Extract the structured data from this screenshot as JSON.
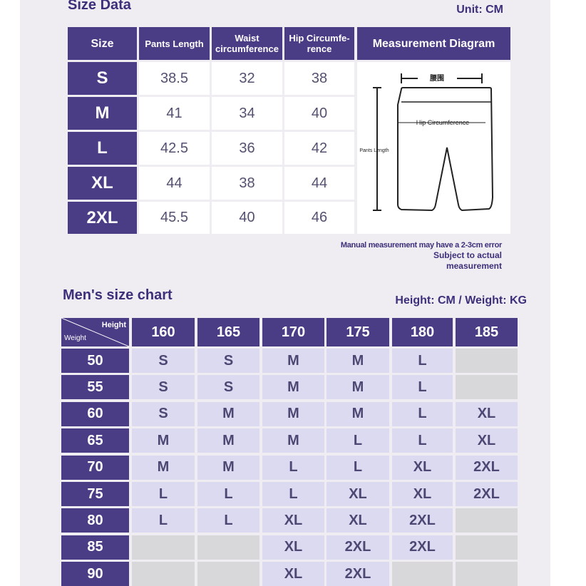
{
  "size_data": {
    "title": "Size Data",
    "unit": "Unit: CM",
    "columns": [
      "Size",
      "Pants Length",
      "Waist circumference",
      "Hip Circumfe- rence",
      "Measurement Diagram"
    ],
    "rows": [
      [
        "S",
        38.5,
        32,
        38
      ],
      [
        "M",
        41,
        34,
        40
      ],
      [
        "L",
        42.5,
        36,
        42
      ],
      [
        "XL",
        44,
        38,
        44
      ],
      [
        "2XL",
        45.5,
        40,
        46
      ]
    ],
    "diagram": {
      "waist": "腰围",
      "hip": "Hip Circumference",
      "length": "Pants Length"
    },
    "notes": [
      "Manual measurement may have a 2-3cm error",
      "Subject to actual measurement"
    ]
  },
  "mens_chart": {
    "title": "Men's size chart",
    "units": "Height: CM / Weight: KG",
    "corner": {
      "height": "Height",
      "weight": "Weight"
    },
    "heights": [
      160,
      165,
      170,
      175,
      180,
      185
    ],
    "rows": [
      {
        "weight": 50,
        "sizes": [
          "S",
          "S",
          "M",
          "M",
          "L",
          null
        ]
      },
      {
        "weight": 55,
        "sizes": [
          "S",
          "S",
          "M",
          "M",
          "L",
          null
        ]
      },
      {
        "weight": 60,
        "sizes": [
          "S",
          "M",
          "M",
          "M",
          "L",
          "XL"
        ]
      },
      {
        "weight": 65,
        "sizes": [
          "M",
          "M",
          "M",
          "L",
          "L",
          "XL"
        ]
      },
      {
        "weight": 70,
        "sizes": [
          "M",
          "M",
          "L",
          "L",
          "XL",
          "2XL"
        ]
      },
      {
        "weight": 75,
        "sizes": [
          "L",
          "L",
          "L",
          "XL",
          "XL",
          "2XL"
        ]
      },
      {
        "weight": 80,
        "sizes": [
          "L",
          "L",
          "XL",
          "XL",
          "2XL",
          null
        ]
      },
      {
        "weight": 85,
        "sizes": [
          null,
          null,
          "XL",
          "2XL",
          "2XL",
          null
        ]
      },
      {
        "weight": 90,
        "sizes": [
          null,
          null,
          "XL",
          "2XL",
          null,
          null
        ]
      }
    ]
  }
}
